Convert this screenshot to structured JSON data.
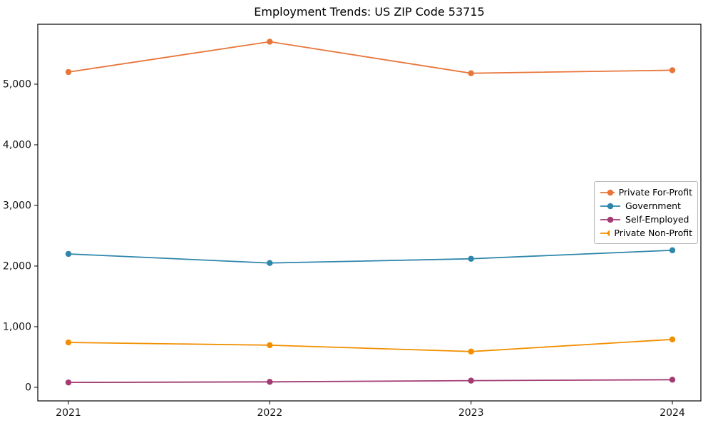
{
  "chart_data": {
    "type": "line",
    "title": "Employment Trends: US ZIP Code 53715",
    "x": [
      "2021",
      "2022",
      "2023",
      "2024"
    ],
    "series": [
      {
        "name": "Private For-Profit",
        "color": "#E8763A",
        "values": [
          5200,
          5700,
          5180,
          5230
        ]
      },
      {
        "name": "Government",
        "color": "#2E86AB",
        "values": [
          2200,
          2050,
          2120,
          2260
        ]
      },
      {
        "name": "Self-Employed",
        "color": "#A23B72",
        "values": [
          80,
          90,
          110,
          125
        ]
      },
      {
        "name": "Private Non-Profit",
        "color": "#F18F01",
        "values": [
          740,
          695,
          590,
          790
        ]
      }
    ],
    "xlabel": "",
    "ylabel": "",
    "ylim": [
      -224,
      5988
    ],
    "yticks": [
      0,
      1000,
      2000,
      3000,
      4000,
      5000
    ],
    "ytick_labels": [
      "0",
      "1,000",
      "2,000",
      "3,000",
      "4,000",
      "5,000"
    ],
    "grid": false,
    "legend_position": "center right",
    "marker": "circle",
    "axis_color": "#000000",
    "background_color": "#ffffff"
  }
}
